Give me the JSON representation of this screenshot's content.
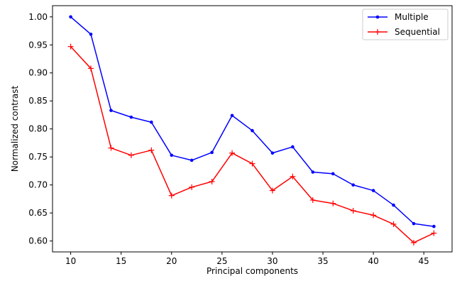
{
  "chart_data": {
    "type": "line",
    "title": "",
    "xlabel": "Principal components",
    "ylabel": "Normalized contrast",
    "xlim": [
      8.2,
      47.8
    ],
    "ylim": [
      0.5805,
      1.02
    ],
    "xticks": [
      10,
      15,
      20,
      25,
      30,
      35,
      40,
      45
    ],
    "yticks": [
      0.6,
      0.65,
      0.7,
      0.75,
      0.8,
      0.85,
      0.9,
      0.95,
      1.0
    ],
    "xtick_labels": [
      "10",
      "15",
      "20",
      "25",
      "30",
      "35",
      "40",
      "45"
    ],
    "ytick_labels": [
      "0.60",
      "0.65",
      "0.70",
      "0.75",
      "0.80",
      "0.85",
      "0.90",
      "0.95",
      "1.00"
    ],
    "grid": false,
    "legend": "top-right",
    "x": [
      10,
      12,
      14,
      16,
      18,
      20,
      22,
      24,
      26,
      28,
      30,
      32,
      34,
      36,
      38,
      40,
      42,
      44,
      46
    ],
    "series": [
      {
        "name": "Multiple",
        "color": "#0000ff",
        "marker": "dot",
        "values": [
          1.0,
          0.969,
          0.833,
          0.821,
          0.812,
          0.753,
          0.744,
          0.758,
          0.824,
          0.797,
          0.757,
          0.768,
          0.723,
          0.72,
          0.7,
          0.69,
          0.664,
          0.631,
          0.626
        ]
      },
      {
        "name": "Sequential",
        "color": "#ff0000",
        "marker": "plus",
        "values": [
          0.947,
          0.908,
          0.766,
          0.753,
          0.762,
          0.681,
          0.696,
          0.706,
          0.757,
          0.738,
          0.69,
          0.715,
          0.673,
          0.667,
          0.654,
          0.646,
          0.63,
          0.597,
          0.614
        ]
      }
    ]
  }
}
